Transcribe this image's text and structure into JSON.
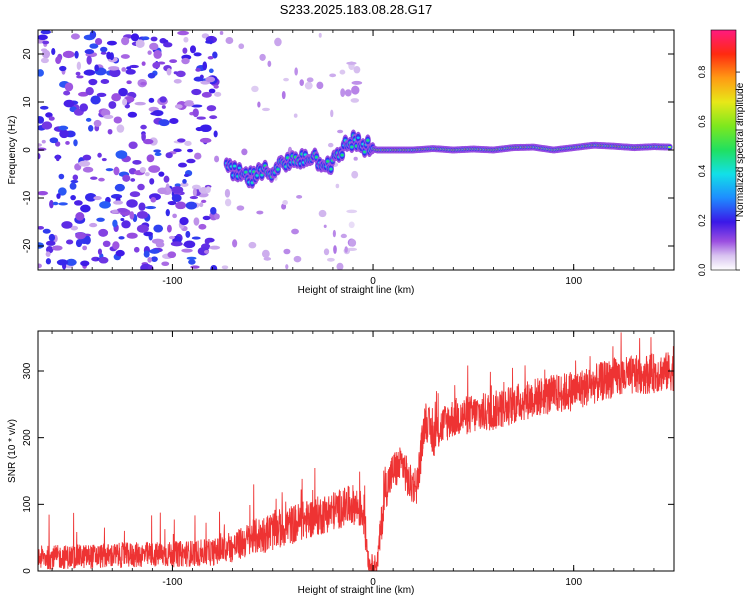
{
  "title": "S233.2025.183.08.28.G17",
  "chart_data": [
    {
      "type": "heatmap",
      "xlabel": "Height of straight line (km)",
      "ylabel": "Frequency (Hz)",
      "xlim": [
        -167,
        150
      ],
      "ylim": [
        -25,
        25
      ],
      "xticks": [
        "-100",
        "0",
        "100"
      ],
      "xtick_values": [
        -100,
        0,
        100
      ],
      "yticks": [
        "-20",
        "-10",
        "0",
        "10",
        "20"
      ],
      "ytick_values": [
        -20,
        -10,
        0,
        10,
        20
      ],
      "colorbar": {
        "label": "Normalized spectral amplitude",
        "range": [
          0,
          0.97
        ],
        "ticks": [
          "0.0",
          "0.2",
          "0.4",
          "0.6",
          "0.8"
        ],
        "tick_values": [
          0,
          0.2,
          0.4,
          0.6,
          0.8
        ]
      },
      "ridge": {
        "x": [
          -73,
          -68,
          -62,
          -56,
          -50,
          -44,
          -38,
          -32,
          -27,
          -22,
          -18,
          -14,
          -10,
          -6,
          -2,
          2,
          10,
          20,
          30,
          40,
          50,
          60,
          70,
          80,
          90,
          100,
          110,
          120,
          130,
          140,
          148
        ],
        "y": [
          -4,
          -5,
          -6,
          -5,
          -4,
          -3,
          -2,
          -1,
          -2,
          -3,
          -2,
          1,
          2,
          1,
          0.5,
          0,
          0,
          0,
          0.3,
          0,
          0.2,
          0,
          0.5,
          0.6,
          0,
          0.5,
          1,
          0.8,
          0.5,
          0.7,
          0.6
        ]
      },
      "noise_regions": [
        {
          "x": [
            -167,
            -78
          ],
          "y": [
            -25,
            25
          ],
          "level": 0.2
        },
        {
          "x": [
            -11,
            -8
          ],
          "y": [
            -25,
            25
          ],
          "level": 0.08
        }
      ]
    },
    {
      "type": "line",
      "xlabel": "Height of straight line (km)",
      "ylabel": "SNR (10 * v/v)",
      "xlim": [
        -167,
        150
      ],
      "ylim": [
        0,
        360
      ],
      "xticks": [
        "-100",
        "0",
        "100"
      ],
      "xtick_values": [
        -100,
        0,
        100
      ],
      "yticks": [
        "0",
        "100",
        "200",
        "300"
      ],
      "ytick_values": [
        0,
        100,
        200,
        300
      ],
      "series": [
        {
          "color": "#ee3333",
          "trend": {
            "x": [
              -167,
              -140,
              -120,
              -100,
              -80,
              -70,
              -60,
              -50,
              -40,
              -30,
              -20,
              -10,
              -5,
              -2,
              2,
              6,
              10,
              15,
              18,
              22,
              26,
              30,
              35,
              40,
              60,
              80,
              100,
              120,
              150
            ],
            "y": [
              20,
              22,
              24,
              25,
              28,
              35,
              50,
              60,
              70,
              80,
              90,
              100,
              90,
              10,
              10,
              120,
              150,
              160,
              130,
              130,
              230,
              200,
              220,
              230,
              240,
              260,
              270,
              290,
              300
            ]
          },
          "noise_amplitude": 30
        }
      ]
    }
  ]
}
